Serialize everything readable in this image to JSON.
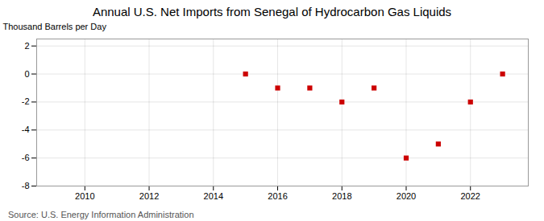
{
  "chart_data": {
    "type": "scatter",
    "title": "Annual U.S. Net Imports from Senegal of Hydrocarbon Gas Liquids",
    "ylabel": "Thousand Barrels per Day",
    "source": "Source: U.S. Energy Information Administration",
    "x": [
      2015,
      2016,
      2017,
      2018,
      2019,
      2020,
      2021,
      2022,
      2023
    ],
    "values": [
      0,
      -1,
      -1,
      -2,
      -1,
      -6,
      -5,
      -2,
      0
    ],
    "color": "#cc0000",
    "marker": "square",
    "xlim": [
      2008.5,
      2023.8
    ],
    "ylim": [
      -8,
      2.5
    ],
    "xticks": [
      2010,
      2012,
      2014,
      2016,
      2018,
      2020,
      2022
    ],
    "yticks": [
      -8,
      -6,
      -4,
      -2,
      0,
      2
    ],
    "grid": true
  }
}
